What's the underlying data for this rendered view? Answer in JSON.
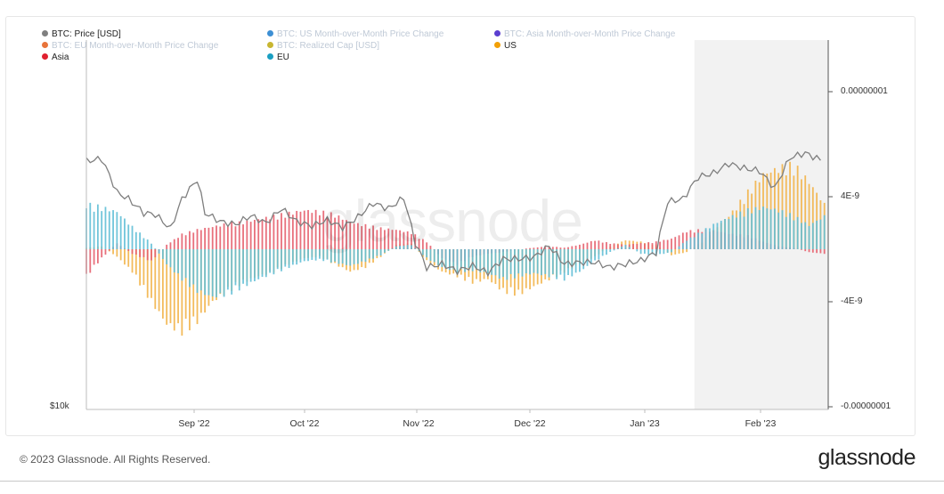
{
  "legend": [
    {
      "label": "BTC: Price [USD]",
      "color": "#7f7f7f",
      "faded": false
    },
    {
      "label": "BTC: US Month-over-Month Price Change",
      "color": "#3d8fd4",
      "faded": true
    },
    {
      "label": "BTC: Asia Month-over-Month Price Change",
      "color": "#5b3fd0",
      "faded": true
    },
    {
      "label": "BTC: EU Month-over-Month Price Change",
      "color": "#e8743b",
      "faded": true
    },
    {
      "label": "BTC: Realized Cap [USD]",
      "color": "#c8b631",
      "faded": true
    },
    {
      "label": "US",
      "color": "#f2a007",
      "faded": false
    },
    {
      "label": "Asia",
      "color": "#e0202f",
      "faded": false
    },
    {
      "label": "EU",
      "color": "#1a9fc2",
      "faded": false
    }
  ],
  "watermark": "glassnode",
  "footer": {
    "copyright": "© 2023 Glassnode. All Rights Reserved.",
    "brand": "glassnode"
  },
  "colors": {
    "us": "#f2b44a",
    "asia": "#e5616e",
    "eu": "#62bfd6",
    "price": "#7f7f7f",
    "shade": "#f2f2f2"
  },
  "chart_data": {
    "type": "bar",
    "x_ticks": [
      "Sep '22",
      "Oct '22",
      "Nov '22",
      "Dec '22",
      "Jan '23",
      "Feb '23"
    ],
    "left_axis": {
      "ticks": [
        "$10k"
      ]
    },
    "right_axis": {
      "ticks": [
        "0.00000001",
        "4E-9",
        "-4E-9",
        "-0.00000001"
      ],
      "ylim": [
        -1e-08,
        1e-08
      ]
    },
    "x_range": [
      "2022-08-15",
      "2023-02-25"
    ],
    "shaded_period": [
      "2023-01-21",
      "2023-02-25"
    ],
    "grid": false,
    "price_series": {
      "name": "BTC: Price [USD]",
      "dates": [
        "2022-08-15",
        "2022-08-19",
        "2022-08-23",
        "2022-08-26",
        "2022-08-30",
        "2022-09-02",
        "2022-09-06",
        "2022-09-09",
        "2022-09-13",
        "2022-09-15",
        "2022-09-19",
        "2022-09-23",
        "2022-09-27",
        "2022-10-01",
        "2022-10-05",
        "2022-10-09",
        "2022-10-13",
        "2022-10-17",
        "2022-10-21",
        "2022-10-25",
        "2022-10-29",
        "2022-11-02",
        "2022-11-06",
        "2022-11-09",
        "2022-11-12",
        "2022-11-16",
        "2022-11-20",
        "2022-11-24",
        "2022-11-28",
        "2022-12-02",
        "2022-12-06",
        "2022-12-10",
        "2022-12-14",
        "2022-12-18",
        "2022-12-22",
        "2022-12-26",
        "2022-12-30",
        "2023-01-03",
        "2023-01-07",
        "2023-01-11",
        "2023-01-14",
        "2023-01-18",
        "2023-01-22",
        "2023-01-26",
        "2023-01-30",
        "2023-02-03",
        "2023-02-07",
        "2023-02-11",
        "2023-02-15",
        "2023-02-19",
        "2023-02-23"
      ],
      "values": [
        24000,
        24200,
        21500,
        21000,
        20000,
        19900,
        18900,
        21000,
        22500,
        20000,
        19400,
        19200,
        19800,
        19300,
        20300,
        19400,
        19100,
        19500,
        19000,
        19700,
        20700,
        20300,
        21100,
        18000,
        16500,
        16700,
        16300,
        16600,
        16200,
        17000,
        17000,
        17100,
        17800,
        16700,
        16800,
        16800,
        16500,
        16700,
        16900,
        17400,
        20800,
        21000,
        22700,
        23000,
        23800,
        23400,
        23200,
        21800,
        24300,
        24700,
        24100
      ]
    },
    "series": [
      {
        "name": "US",
        "color": "#f2a007",
        "dates": [
          "2022-08-15",
          "2022-08-19",
          "2022-08-23",
          "2022-08-27",
          "2022-09-01",
          "2022-09-05",
          "2022-09-09",
          "2022-09-13",
          "2022-09-17",
          "2022-09-21",
          "2022-09-25",
          "2022-09-29",
          "2022-10-03",
          "2022-10-07",
          "2022-10-11",
          "2022-10-15",
          "2022-10-19",
          "2022-10-23",
          "2022-10-27",
          "2022-10-31",
          "2022-11-04",
          "2022-11-08",
          "2022-11-12",
          "2022-11-16",
          "2022-11-20",
          "2022-11-24",
          "2022-11-28",
          "2022-12-02",
          "2022-12-06",
          "2022-12-10",
          "2022-12-14",
          "2022-12-18",
          "2022-12-22",
          "2022-12-26",
          "2022-12-30",
          "2023-01-03",
          "2023-01-07",
          "2023-01-11",
          "2023-01-15",
          "2023-01-19",
          "2023-01-23",
          "2023-01-27",
          "2023-01-31",
          "2023-02-04",
          "2023-02-08",
          "2023-02-12",
          "2023-02-16",
          "2023-02-20",
          "2023-02-24"
        ],
        "values": [
          1e-10,
          2e-10,
          -5e-10,
          -1.5e-09,
          -3.5e-09,
          -5e-09,
          -5.5e-09,
          -4.8e-09,
          -3.5e-09,
          -2.8e-09,
          -2.2e-09,
          -1.8e-09,
          -1.5e-09,
          -1e-09,
          -6e-10,
          -5e-10,
          -1e-09,
          -1.5e-09,
          -1.2e-09,
          -5e-10,
          3e-10,
          4e-10,
          -8e-10,
          -1.5e-09,
          -1.8e-09,
          -2.2e-09,
          -2e-09,
          -2.8e-09,
          -3e-09,
          -2.5e-09,
          -2e-09,
          -1.5e-09,
          -1e-09,
          -5e-10,
          2e-10,
          6e-10,
          5e-10,
          3e-10,
          -4e-10,
          -2e-10,
          5e-10,
          1.5e-09,
          2.5e-09,
          3.8e-09,
          5e-09,
          5.4e-09,
          5.6e-09,
          4.5e-09,
          3e-09
        ]
      },
      {
        "name": "Asia",
        "color": "#e0202f",
        "dates": [
          "2022-08-15",
          "2022-08-19",
          "2022-08-23",
          "2022-08-27",
          "2022-09-01",
          "2022-09-05",
          "2022-09-09",
          "2022-09-13",
          "2022-09-17",
          "2022-09-21",
          "2022-09-25",
          "2022-09-29",
          "2022-10-03",
          "2022-10-07",
          "2022-10-11",
          "2022-10-15",
          "2022-10-19",
          "2022-10-23",
          "2022-10-27",
          "2022-10-31",
          "2022-11-04",
          "2022-11-08",
          "2022-11-12",
          "2022-11-16",
          "2022-11-20",
          "2022-11-24",
          "2022-11-28",
          "2022-12-02",
          "2022-12-06",
          "2022-12-10",
          "2022-12-14",
          "2022-12-18",
          "2022-12-22",
          "2022-12-26",
          "2022-12-30",
          "2023-01-03",
          "2023-01-07",
          "2023-01-11",
          "2023-01-15",
          "2023-01-19",
          "2023-01-23",
          "2023-01-27",
          "2023-01-31",
          "2023-02-04",
          "2023-02-08",
          "2023-02-12",
          "2023-02-16",
          "2023-02-20",
          "2023-02-24"
        ],
        "values": [
          -1.8e-09,
          -6e-10,
          4e-10,
          -3e-10,
          -8e-10,
          3e-10,
          1e-09,
          1.3e-09,
          1.5e-09,
          1.7e-09,
          1.8e-09,
          2e-09,
          2.2e-09,
          2.4e-09,
          2.6e-09,
          2.5e-09,
          2.3e-09,
          1.8e-09,
          1.6e-09,
          1.4e-09,
          1.3e-09,
          1.1e-09,
          5e-10,
          -6e-10,
          -1e-09,
          -5e-10,
          -3e-10,
          -2e-10,
          0.0,
          1e-10,
          2e-10,
          1e-10,
          3e-10,
          6e-10,
          4e-10,
          3e-10,
          4e-10,
          5e-10,
          7e-10,
          1.2e-09,
          1.3e-09,
          1.2e-09,
          1e-09,
          9e-10,
          5e-10,
          2e-10,
          1e-10,
          -2e-10,
          -3e-10
        ]
      },
      {
        "name": "EU",
        "color": "#1a9fc2",
        "dates": [
          "2022-08-15",
          "2022-08-19",
          "2022-08-23",
          "2022-08-27",
          "2022-09-01",
          "2022-09-05",
          "2022-09-09",
          "2022-09-13",
          "2022-09-17",
          "2022-09-21",
          "2022-09-25",
          "2022-09-29",
          "2022-10-03",
          "2022-10-07",
          "2022-10-11",
          "2022-10-15",
          "2022-10-19",
          "2022-10-23",
          "2022-10-27",
          "2022-10-31",
          "2022-11-04",
          "2022-11-08",
          "2022-11-12",
          "2022-11-16",
          "2022-11-20",
          "2022-11-24",
          "2022-11-28",
          "2022-12-02",
          "2022-12-06",
          "2022-12-10",
          "2022-12-14",
          "2022-12-18",
          "2022-12-22",
          "2022-12-26",
          "2022-12-30",
          "2023-01-03",
          "2023-01-07",
          "2023-01-11",
          "2023-01-15",
          "2023-01-19",
          "2023-01-23",
          "2023-01-27",
          "2023-01-31",
          "2023-02-04",
          "2023-02-08",
          "2023-02-12",
          "2023-02-16",
          "2023-02-20",
          "2023-02-24"
        ],
        "values": [
          3e-09,
          2.8e-09,
          2.5e-09,
          1.5e-09,
          4e-10,
          -1e-09,
          -2e-09,
          -2.8e-09,
          -3.2e-09,
          -3e-09,
          -2.5e-09,
          -2e-09,
          -1.6e-09,
          -1.2e-09,
          -8e-10,
          -7e-10,
          -9e-10,
          -1.1e-09,
          -8e-10,
          -4e-10,
          2e-10,
          3e-10,
          -6e-10,
          -1.2e-09,
          -1.5e-09,
          -1.4e-09,
          -1.6e-09,
          -2e-09,
          -1.8e-09,
          -1.6e-09,
          -1.8e-09,
          -2e-09,
          -1.5e-09,
          -8e-10,
          -2e-10,
          3e-10,
          -3e-10,
          -4e-10,
          -2e-10,
          6e-10,
          1.2e-09,
          1.8e-09,
          2.2e-09,
          2.6e-09,
          2.8e-09,
          2.6e-09,
          2.2e-09,
          1.6e-09,
          2.2e-09
        ]
      }
    ]
  }
}
